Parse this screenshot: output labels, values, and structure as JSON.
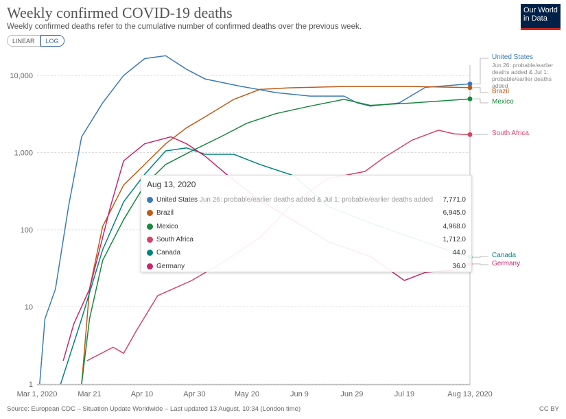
{
  "header": {
    "title": "Weekly confirmed COVID-19 deaths",
    "subtitle": "Weekly confirmed deaths refer to the cumulative number of confirmed deaths over the previous week.",
    "linear": "LINEAR",
    "log": "LOG",
    "logo": "Our World in Data"
  },
  "footer": {
    "source": "Source: European CDC – Situation Update Worldwide – Last updated 13 August, 10:34 (London time)",
    "license": "CC BY"
  },
  "tooltip": {
    "date": "Aug 13, 2020",
    "rows": [
      {
        "name": "United States",
        "note": "Jun 26: probable/earlier deaths added & Jul 1: probable/earlier deaths added",
        "value": "7,771.0",
        "color": "#3a7ab8"
      },
      {
        "name": "Brazil",
        "note": "",
        "value": "6,945.0",
        "color": "#c05917"
      },
      {
        "name": "Mexico",
        "note": "",
        "value": "4,968.0",
        "color": "#18873f"
      },
      {
        "name": "South Africa",
        "note": "",
        "value": "1,712.0",
        "color": "#d64364"
      },
      {
        "name": "Canada",
        "note": "",
        "value": "44.0",
        "color": "#00847e"
      },
      {
        "name": "Germany",
        "note": "",
        "value": "36.0",
        "color": "#c8266b"
      }
    ]
  },
  "us_note": "Jun 26: probable/earlier deaths added & Jul 1: probable/earlier deaths added",
  "chart_data": {
    "type": "line",
    "title": "Weekly confirmed COVID-19 deaths",
    "yscale": "log",
    "ylim": [
      1,
      20000
    ],
    "xlim_days": [
      0,
      165
    ],
    "yticks": [
      {
        "v": 1,
        "l": "1"
      },
      {
        "v": 10,
        "l": "10"
      },
      {
        "v": 100,
        "l": "100"
      },
      {
        "v": 1000,
        "l": "1,000"
      },
      {
        "v": 10000,
        "l": "10,000"
      }
    ],
    "xticks": [
      {
        "d": 0,
        "l": "Mar 1, 2020"
      },
      {
        "d": 20,
        "l": "Mar 21"
      },
      {
        "d": 40,
        "l": "Apr 10"
      },
      {
        "d": 60,
        "l": "Apr 30"
      },
      {
        "d": 80,
        "l": "May 20"
      },
      {
        "d": 100,
        "l": "Jun 9"
      },
      {
        "d": 120,
        "l": "Jun 29"
      },
      {
        "d": 140,
        "l": "Jul 19"
      },
      {
        "d": 165,
        "l": "Aug 13, 2020"
      }
    ],
    "series": [
      {
        "name": "United States",
        "color": "#3a7ab8",
        "points": [
          [
            1,
            1
          ],
          [
            3,
            7
          ],
          [
            7,
            17
          ],
          [
            12,
            200
          ],
          [
            17,
            1600
          ],
          [
            25,
            4400
          ],
          [
            33,
            10000
          ],
          [
            41,
            16500
          ],
          [
            49,
            18000
          ],
          [
            57,
            12000
          ],
          [
            64,
            9000
          ],
          [
            77,
            7300
          ],
          [
            91,
            6000
          ],
          [
            104,
            5400
          ],
          [
            117,
            5400
          ],
          [
            122,
            4400
          ],
          [
            127,
            4000
          ],
          [
            138,
            4400
          ],
          [
            148,
            7000
          ],
          [
            165,
            7771
          ]
        ]
      },
      {
        "name": "Brazil",
        "color": "#c05917",
        "points": [
          [
            17,
            1
          ],
          [
            20,
            17
          ],
          [
            25,
            110
          ],
          [
            33,
            380
          ],
          [
            41,
            700
          ],
          [
            49,
            1300
          ],
          [
            57,
            2100
          ],
          [
            64,
            2900
          ],
          [
            75,
            4900
          ],
          [
            85,
            6600
          ],
          [
            96,
            6900
          ],
          [
            117,
            7200
          ],
          [
            143,
            7200
          ],
          [
            165,
            6945
          ]
        ]
      },
      {
        "name": "Mexico",
        "color": "#18873f",
        "points": [
          [
            17,
            1
          ],
          [
            20,
            7
          ],
          [
            25,
            40
          ],
          [
            33,
            135
          ],
          [
            41,
            380
          ],
          [
            49,
            700
          ],
          [
            59,
            1050
          ],
          [
            70,
            1600
          ],
          [
            80,
            2400
          ],
          [
            91,
            3200
          ],
          [
            104,
            4000
          ],
          [
            117,
            4900
          ],
          [
            127,
            4100
          ],
          [
            143,
            4400
          ],
          [
            165,
            4968
          ]
        ]
      },
      {
        "name": "South Africa",
        "color": "#d64364",
        "points": [
          [
            19,
            2
          ],
          [
            29,
            3
          ],
          [
            33,
            2.5
          ],
          [
            38,
            5
          ],
          [
            46,
            14
          ],
          [
            59,
            22
          ],
          [
            72,
            40
          ],
          [
            85,
            80
          ],
          [
            98,
            230
          ],
          [
            111,
            460
          ],
          [
            125,
            570
          ],
          [
            132,
            850
          ],
          [
            143,
            1450
          ],
          [
            153,
            1950
          ],
          [
            159,
            1750
          ],
          [
            165,
            1712
          ]
        ]
      },
      {
        "name": "Canada",
        "color": "#00847e",
        "points": [
          [
            9,
            1
          ],
          [
            17,
            7
          ],
          [
            25,
            55
          ],
          [
            33,
            230
          ],
          [
            41,
            520
          ],
          [
            49,
            1050
          ],
          [
            57,
            1150
          ],
          [
            64,
            950
          ],
          [
            75,
            950
          ],
          [
            85,
            700
          ],
          [
            98,
            500
          ],
          [
            111,
            200
          ],
          [
            125,
            130
          ],
          [
            138,
            90
          ],
          [
            153,
            60
          ],
          [
            165,
            44
          ]
        ]
      },
      {
        "name": "Germany",
        "color": "#c8266b",
        "points": [
          [
            10,
            2
          ],
          [
            14,
            6
          ],
          [
            20,
            17
          ],
          [
            28,
            200
          ],
          [
            33,
            780
          ],
          [
            41,
            1300
          ],
          [
            51,
            1600
          ],
          [
            57,
            1300
          ],
          [
            64,
            900
          ],
          [
            72,
            530
          ],
          [
            85,
            240
          ],
          [
            98,
            130
          ],
          [
            111,
            70
          ],
          [
            127,
            45
          ],
          [
            140,
            22
          ],
          [
            148,
            28
          ],
          [
            159,
            30
          ],
          [
            165,
            36
          ]
        ]
      }
    ]
  }
}
